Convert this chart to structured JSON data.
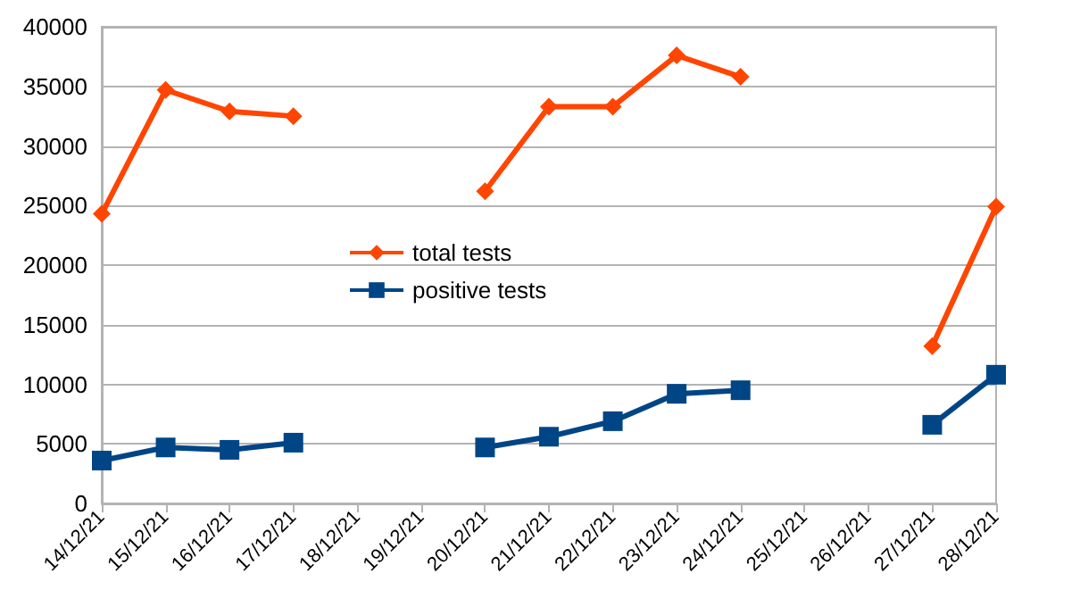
{
  "chart_data": {
    "type": "line",
    "categories": [
      "14/12/21",
      "15/12/21",
      "16/12/21",
      "17/12/21",
      "18/12/21",
      "19/12/21",
      "20/12/21",
      "21/12/21",
      "22/12/21",
      "23/12/21",
      "24/12/21",
      "25/12/21",
      "26/12/21",
      "27/12/21",
      "28/12/21"
    ],
    "series": [
      {
        "name": "total tests",
        "color": "#ff4500",
        "marker": "diamond",
        "values": [
          24300,
          34700,
          32900,
          32500,
          null,
          null,
          26200,
          33300,
          33300,
          37600,
          35800,
          null,
          null,
          13200,
          24900
        ]
      },
      {
        "name": "positive tests",
        "color": "#004586",
        "marker": "square",
        "values": [
          3600,
          4700,
          4500,
          5100,
          null,
          null,
          4700,
          5600,
          6900,
          9200,
          9500,
          null,
          null,
          6600,
          10800
        ]
      }
    ],
    "ylim": [
      0,
      40000
    ],
    "yticks": [
      0,
      5000,
      10000,
      15000,
      20000,
      25000,
      30000,
      35000,
      40000
    ],
    "grid": "y",
    "legend": "center"
  }
}
